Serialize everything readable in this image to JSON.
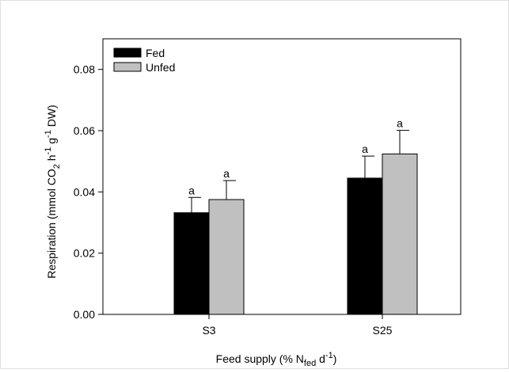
{
  "chart_data": {
    "type": "bar",
    "categories": [
      "S3",
      "S25"
    ],
    "series": [
      {
        "name": "Fed",
        "color": "#000000",
        "values": [
          0.0332,
          0.0445
        ],
        "errors": [
          0.005,
          0.0072
        ],
        "significance": [
          "a",
          "a"
        ]
      },
      {
        "name": "Unfed",
        "color": "#c0c0c0",
        "values": [
          0.0375,
          0.0524
        ],
        "errors": [
          0.0062,
          0.0077
        ],
        "significance": [
          "a",
          "a"
        ]
      }
    ],
    "ylim": [
      0,
      0.09
    ],
    "yticks": [
      "0.00",
      "0.02",
      "0.04",
      "0.06",
      "0.08"
    ],
    "ytick_values": [
      0,
      0.02,
      0.04,
      0.06,
      0.08
    ],
    "ylabel": {
      "main": "Respiration (mmol CO",
      "sub2": "2",
      "mid": " h",
      "sup1": "-1",
      "mid2": " g",
      "sup2": "-1",
      "end": " DW)"
    },
    "xlabel": {
      "main": "Feed supply (% N",
      "sub": "fed",
      "mid": " d",
      "sup": "-1",
      "end": ")"
    },
    "legend_position": "top-left",
    "grid": false
  }
}
